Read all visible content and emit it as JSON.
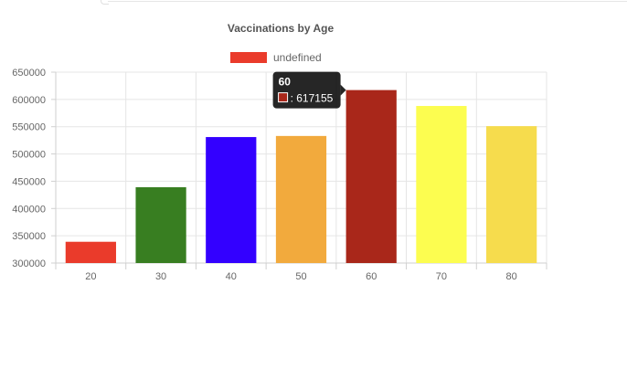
{
  "chart_data": {
    "type": "bar",
    "title": "Vaccinations by Age",
    "legend": {
      "label": "undefined",
      "color": "#ea3b2b",
      "position": "top"
    },
    "categories": [
      "20",
      "30",
      "40",
      "50",
      "60",
      "70",
      "80"
    ],
    "values": [
      339000,
      439000,
      531000,
      533000,
      617155,
      588000,
      551000
    ],
    "colors": [
      "#ea3b2b",
      "#387e21",
      "#3300ff",
      "#f2aa3d",
      "#a9271a",
      "#fcfd50",
      "#f6dc4d"
    ],
    "ylim": [
      300000,
      650000
    ],
    "yticks": [
      "650000",
      "600000",
      "550000",
      "500000",
      "450000",
      "400000",
      "350000",
      "300000"
    ],
    "grid": true,
    "tooltip": {
      "category": "60",
      "value": "617155",
      "color": "#a9271a"
    }
  }
}
